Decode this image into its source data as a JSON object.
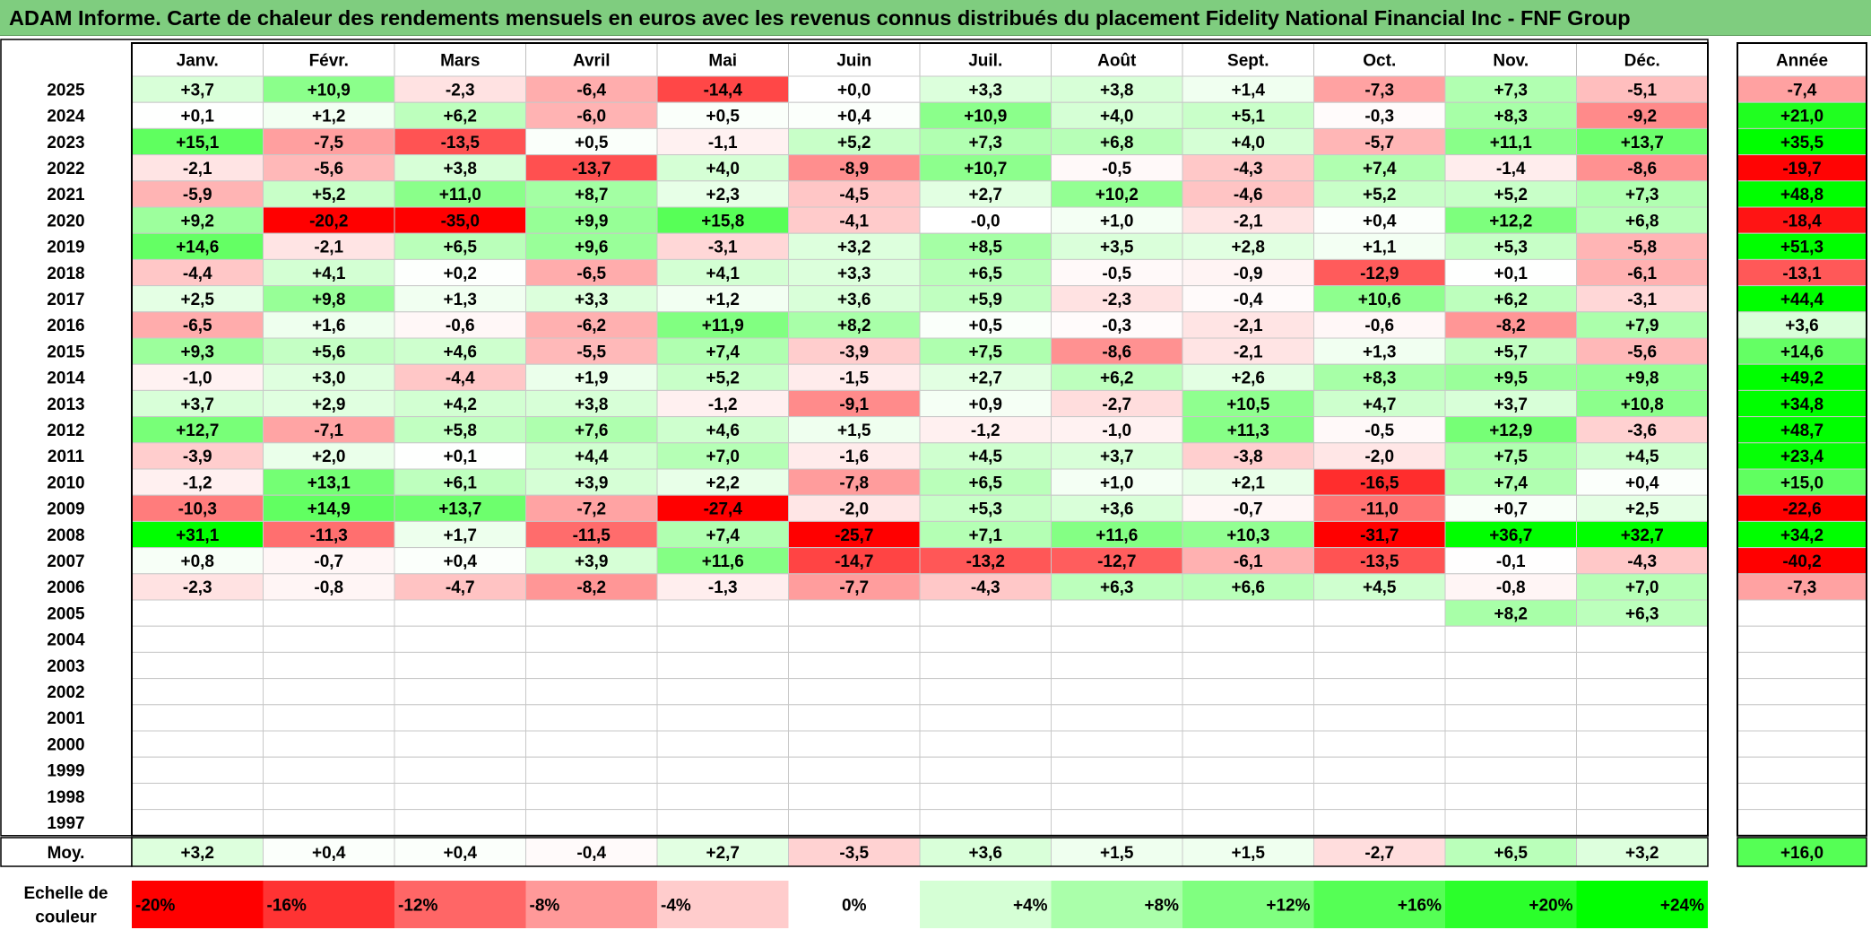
{
  "chart_data": {
    "type": "heatmap",
    "title": "ADAM Informe. Carte de chaleur des rendements mensuels en euros avec les revenus connus distribués du placement Fidelity National Financial Inc - FNF Group",
    "months": [
      "Janv.",
      "Févr.",
      "Mars",
      "Avril",
      "Mai",
      "Juin",
      "Juil.",
      "Août",
      "Sept.",
      "Oct.",
      "Nov.",
      "Déc."
    ],
    "year_header": "Année",
    "rows": [
      {
        "year": "2025",
        "values": [
          "+3,7",
          "+10,9",
          "-2,3",
          "-6,4",
          "-14,4",
          "+0,0",
          "+3,3",
          "+3,8",
          "+1,4",
          "-7,3",
          "+7,3",
          "-5,1"
        ],
        "annual": "-7,4"
      },
      {
        "year": "2024",
        "values": [
          "+0,1",
          "+1,2",
          "+6,2",
          "-6,0",
          "+0,5",
          "+0,4",
          "+10,9",
          "+4,0",
          "+5,1",
          "-0,3",
          "+8,3",
          "-9,2"
        ],
        "annual": "+21,0"
      },
      {
        "year": "2023",
        "values": [
          "+15,1",
          "-7,5",
          "-13,5",
          "+0,5",
          "-1,1",
          "+5,2",
          "+7,3",
          "+6,8",
          "+4,0",
          "-5,7",
          "+11,1",
          "+13,7"
        ],
        "annual": "+35,5"
      },
      {
        "year": "2022",
        "values": [
          "-2,1",
          "-5,6",
          "+3,8",
          "-13,7",
          "+4,0",
          "-8,9",
          "+10,7",
          "-0,5",
          "-4,3",
          "+7,4",
          "-1,4",
          "-8,6"
        ],
        "annual": "-19,7"
      },
      {
        "year": "2021",
        "values": [
          "-5,9",
          "+5,2",
          "+11,0",
          "+8,7",
          "+2,3",
          "-4,5",
          "+2,7",
          "+10,2",
          "-4,6",
          "+5,2",
          "+5,2",
          "+7,3"
        ],
        "annual": "+48,8"
      },
      {
        "year": "2020",
        "values": [
          "+9,2",
          "-20,2",
          "-35,0",
          "+9,9",
          "+15,8",
          "-4,1",
          "-0,0",
          "+1,0",
          "-2,1",
          "+0,4",
          "+12,2",
          "+6,8"
        ],
        "annual": "-18,4"
      },
      {
        "year": "2019",
        "values": [
          "+14,6",
          "-2,1",
          "+6,5",
          "+9,6",
          "-3,1",
          "+3,2",
          "+8,5",
          "+3,5",
          "+2,8",
          "+1,1",
          "+5,3",
          "-5,8"
        ],
        "annual": "+51,3"
      },
      {
        "year": "2018",
        "values": [
          "-4,4",
          "+4,1",
          "+0,2",
          "-6,5",
          "+4,1",
          "+3,3",
          "+6,5",
          "-0,5",
          "-0,9",
          "-12,9",
          "+0,1",
          "-6,1"
        ],
        "annual": "-13,1"
      },
      {
        "year": "2017",
        "values": [
          "+2,5",
          "+9,8",
          "+1,3",
          "+3,3",
          "+1,2",
          "+3,6",
          "+5,9",
          "-2,3",
          "-0,4",
          "+10,6",
          "+6,2",
          "-3,1"
        ],
        "annual": "+44,4"
      },
      {
        "year": "2016",
        "values": [
          "-6,5",
          "+1,6",
          "-0,6",
          "-6,2",
          "+11,9",
          "+8,2",
          "+0,5",
          "-0,3",
          "-2,1",
          "-0,6",
          "-8,2",
          "+7,9"
        ],
        "annual": "+3,6"
      },
      {
        "year": "2015",
        "values": [
          "+9,3",
          "+5,6",
          "+4,6",
          "-5,5",
          "+7,4",
          "-3,9",
          "+7,5",
          "-8,6",
          "-2,1",
          "+1,3",
          "+5,7",
          "-5,6"
        ],
        "annual": "+14,6"
      },
      {
        "year": "2014",
        "values": [
          "-1,0",
          "+3,0",
          "-4,4",
          "+1,9",
          "+5,2",
          "-1,5",
          "+2,7",
          "+6,2",
          "+2,6",
          "+8,3",
          "+9,5",
          "+9,8"
        ],
        "annual": "+49,2"
      },
      {
        "year": "2013",
        "values": [
          "+3,7",
          "+2,9",
          "+4,2",
          "+3,8",
          "-1,2",
          "-9,1",
          "+0,9",
          "-2,7",
          "+10,5",
          "+4,7",
          "+3,7",
          "+10,8"
        ],
        "annual": "+34,8"
      },
      {
        "year": "2012",
        "values": [
          "+12,7",
          "-7,1",
          "+5,8",
          "+7,6",
          "+4,6",
          "+1,5",
          "-1,2",
          "-1,0",
          "+11,3",
          "-0,5",
          "+12,9",
          "-3,6"
        ],
        "annual": "+48,7"
      },
      {
        "year": "2011",
        "values": [
          "-3,9",
          "+2,0",
          "+0,1",
          "+4,4",
          "+7,0",
          "-1,6",
          "+4,5",
          "+3,7",
          "-3,8",
          "-2,0",
          "+7,5",
          "+4,5"
        ],
        "annual": "+23,4"
      },
      {
        "year": "2010",
        "values": [
          "-1,2",
          "+13,1",
          "+6,1",
          "+3,9",
          "+2,2",
          "-7,8",
          "+6,5",
          "+1,0",
          "+2,1",
          "-16,5",
          "+7,4",
          "+0,4"
        ],
        "annual": "+15,0"
      },
      {
        "year": "2009",
        "values": [
          "-10,3",
          "+14,9",
          "+13,7",
          "-7,2",
          "-27,4",
          "-2,0",
          "+5,3",
          "+3,6",
          "-0,7",
          "-11,0",
          "+0,7",
          "+2,5"
        ],
        "annual": "-22,6"
      },
      {
        "year": "2008",
        "values": [
          "+31,1",
          "-11,3",
          "+1,7",
          "-11,5",
          "+7,4",
          "-25,7",
          "+7,1",
          "+11,6",
          "+10,3",
          "-31,7",
          "+36,7",
          "+32,7"
        ],
        "annual": "+34,2"
      },
      {
        "year": "2007",
        "values": [
          "+0,8",
          "-0,7",
          "+0,4",
          "+3,9",
          "+11,6",
          "-14,7",
          "-13,2",
          "-12,7",
          "-6,1",
          "-13,5",
          "-0,1",
          "-4,3"
        ],
        "annual": "-40,2"
      },
      {
        "year": "2006",
        "values": [
          "-2,3",
          "-0,8",
          "-4,7",
          "-8,2",
          "-1,3",
          "-7,7",
          "-4,3",
          "+6,3",
          "+6,6",
          "+4,5",
          "-0,8",
          "+7,0"
        ],
        "annual": "-7,3"
      },
      {
        "year": "2005",
        "values": [
          "",
          "",
          "",
          "",
          "",
          "",
          "",
          "",
          "",
          "",
          "+8,2",
          "+6,3"
        ],
        "annual": ""
      },
      {
        "year": "2004",
        "values": [
          "",
          "",
          "",
          "",
          "",
          "",
          "",
          "",
          "",
          "",
          "",
          ""
        ],
        "annual": ""
      },
      {
        "year": "2003",
        "values": [
          "",
          "",
          "",
          "",
          "",
          "",
          "",
          "",
          "",
          "",
          "",
          ""
        ],
        "annual": ""
      },
      {
        "year": "2002",
        "values": [
          "",
          "",
          "",
          "",
          "",
          "",
          "",
          "",
          "",
          "",
          "",
          ""
        ],
        "annual": ""
      },
      {
        "year": "2001",
        "values": [
          "",
          "",
          "",
          "",
          "",
          "",
          "",
          "",
          "",
          "",
          "",
          ""
        ],
        "annual": ""
      },
      {
        "year": "2000",
        "values": [
          "",
          "",
          "",
          "",
          "",
          "",
          "",
          "",
          "",
          "",
          "",
          ""
        ],
        "annual": ""
      },
      {
        "year": "1999",
        "values": [
          "",
          "",
          "",
          "",
          "",
          "",
          "",
          "",
          "",
          "",
          "",
          ""
        ],
        "annual": ""
      },
      {
        "year": "1998",
        "values": [
          "",
          "",
          "",
          "",
          "",
          "",
          "",
          "",
          "",
          "",
          "",
          ""
        ],
        "annual": ""
      },
      {
        "year": "1997",
        "values": [
          "",
          "",
          "",
          "",
          "",
          "",
          "",
          "",
          "",
          "",
          "",
          ""
        ],
        "annual": ""
      }
    ],
    "average": {
      "label": "Moy.",
      "values": [
        "+3,2",
        "+0,4",
        "+0,4",
        "-0,4",
        "+2,7",
        "-3,5",
        "+3,6",
        "+1,5",
        "+1,5",
        "-2,7",
        "+6,5",
        "+3,2"
      ],
      "annual": "+16,0"
    },
    "scale": {
      "label_line1": "Echelle de",
      "label_line2": "couleur",
      "stops": [
        {
          "label": "-20%",
          "value": -20
        },
        {
          "label": "-16%",
          "value": -16
        },
        {
          "label": "-12%",
          "value": -12
        },
        {
          "label": "-8%",
          "value": -8
        },
        {
          "label": "-4%",
          "value": -4
        },
        {
          "label": "0%",
          "value": 0
        },
        {
          "label": "+4%",
          "value": 4
        },
        {
          "label": "+8%",
          "value": 8
        },
        {
          "label": "+12%",
          "value": 12
        },
        {
          "label": "+16%",
          "value": 16
        },
        {
          "label": "+20%",
          "value": 20
        },
        {
          "label": "+24%",
          "value": 24
        }
      ]
    },
    "colors": {
      "negative_max": "#ff0000",
      "neutral": "#ffffff",
      "positive_max": "#00ff00",
      "title_bg": "#7fcd7f"
    }
  }
}
